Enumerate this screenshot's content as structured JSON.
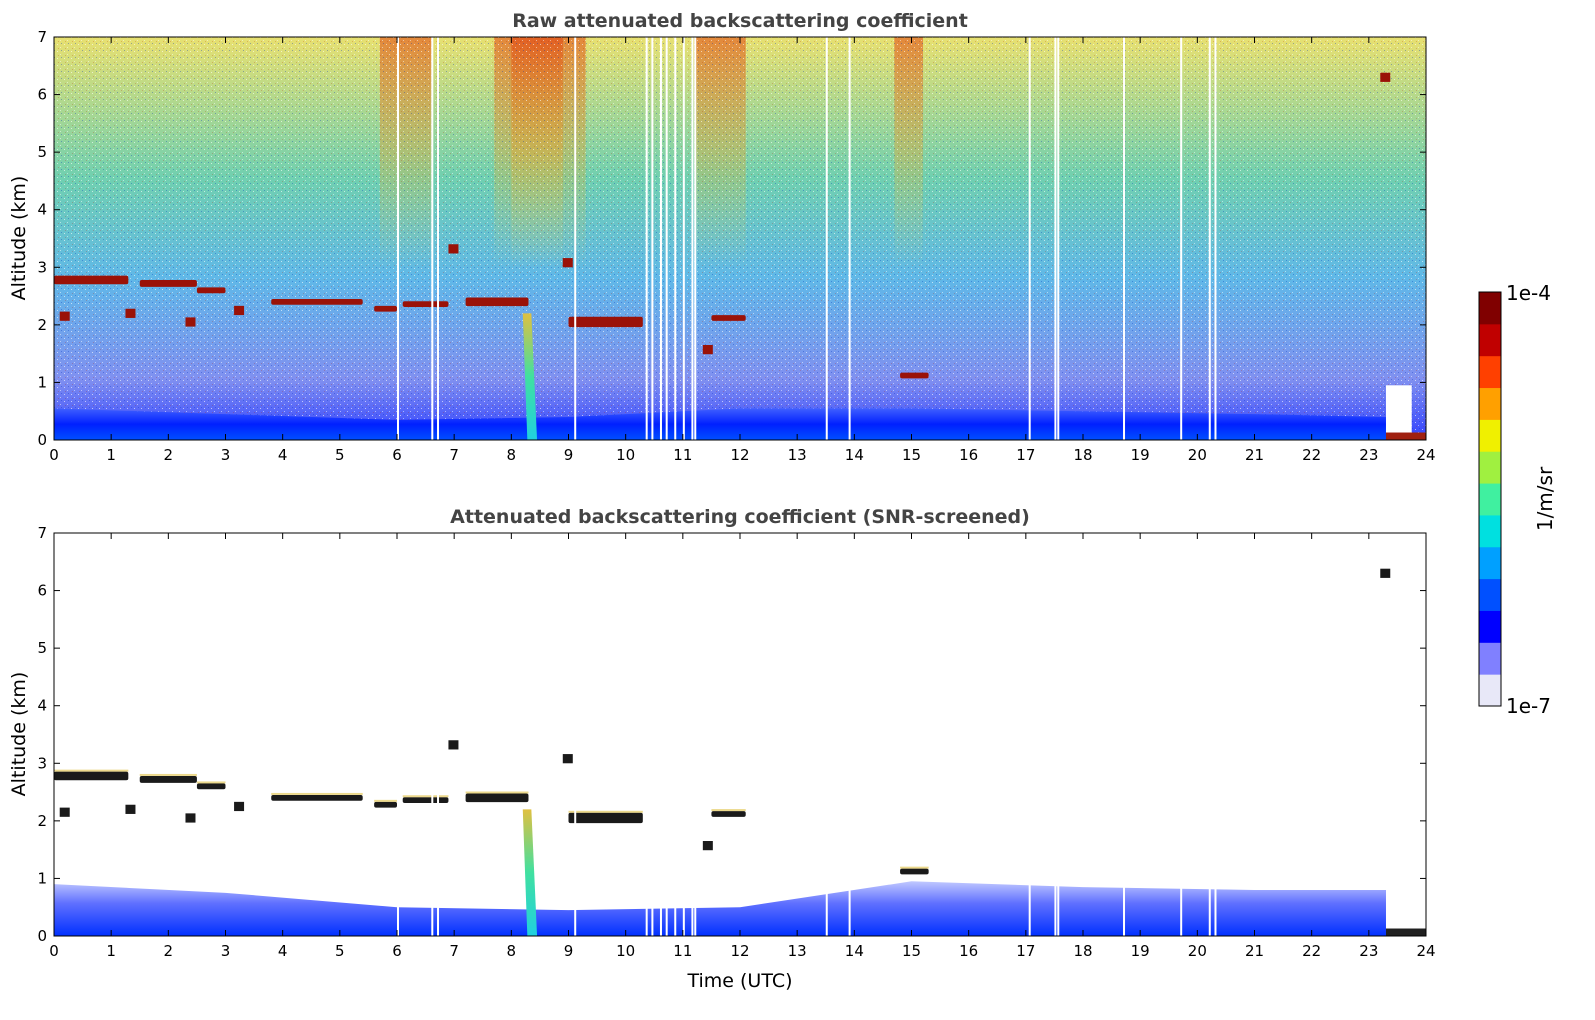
{
  "chart_data": [
    {
      "type": "heatmap",
      "id": "raw",
      "title": "Raw attenuated backscattering coefficient",
      "xlabel": "",
      "ylabel": "Altitude (km)",
      "xlim": [
        0,
        24
      ],
      "ylim": [
        0,
        7
      ],
      "xticks": [
        "0",
        "1",
        "2",
        "3",
        "4",
        "5",
        "6",
        "7",
        "8",
        "9",
        "10",
        "11",
        "12",
        "13",
        "14",
        "15",
        "16",
        "17",
        "18",
        "19",
        "20",
        "21",
        "22",
        "23",
        "24"
      ],
      "yticks": [
        "0",
        "1",
        "2",
        "3",
        "4",
        "5",
        "6",
        "7"
      ],
      "grid": false,
      "boundary_layer": [
        {
          "t": 0,
          "top": 0.55
        },
        {
          "t": 3,
          "top": 0.45
        },
        {
          "t": 6,
          "top": 0.35
        },
        {
          "t": 9,
          "top": 0.4
        },
        {
          "t": 12,
          "top": 0.55
        },
        {
          "t": 15,
          "top": 0.55
        },
        {
          "t": 18,
          "top": 0.5
        },
        {
          "t": 21,
          "top": 0.45
        },
        {
          "t": 23.3,
          "top": 0.4
        }
      ],
      "cloud_layers": [
        {
          "t0": 0.0,
          "t1": 1.3,
          "alt": 2.78,
          "thick": 0.15
        },
        {
          "t0": 1.5,
          "t1": 2.5,
          "alt": 2.72,
          "thick": 0.12
        },
        {
          "t0": 2.5,
          "t1": 3.0,
          "alt": 2.6,
          "thick": 0.1
        },
        {
          "t0": 3.8,
          "t1": 5.4,
          "alt": 2.4,
          "thick": 0.1
        },
        {
          "t0": 5.6,
          "t1": 6.0,
          "alt": 2.28,
          "thick": 0.1
        },
        {
          "t0": 6.1,
          "t1": 6.9,
          "alt": 2.36,
          "thick": 0.1
        },
        {
          "t0": 7.2,
          "t1": 8.3,
          "alt": 2.4,
          "thick": 0.15
        },
        {
          "t0": 9.0,
          "t1": 10.3,
          "alt": 2.05,
          "thick": 0.18
        },
        {
          "t0": 11.5,
          "t1": 12.1,
          "alt": 2.12,
          "thick": 0.1
        },
        {
          "t0": 14.8,
          "t1": 15.3,
          "alt": 1.12,
          "thick": 0.1
        }
      ],
      "gaps_utc": [
        6.0,
        6.6,
        6.7,
        9.1,
        10.35,
        10.45,
        10.6,
        10.7,
        10.85,
        11.0,
        11.15,
        11.2,
        13.5,
        13.9,
        17.05,
        17.5,
        17.55,
        18.7,
        19.7,
        20.2,
        20.3
      ]
    },
    {
      "type": "heatmap",
      "id": "screened",
      "title": "Attenuated backscattering coefficient (SNR-screened)",
      "xlabel": "Time (UTC)",
      "ylabel": "Altitude (km)",
      "xlim": [
        0,
        24
      ],
      "ylim": [
        0,
        7
      ],
      "xticks": [
        "0",
        "1",
        "2",
        "3",
        "4",
        "5",
        "6",
        "7",
        "8",
        "9",
        "10",
        "11",
        "12",
        "13",
        "14",
        "15",
        "16",
        "17",
        "18",
        "19",
        "20",
        "21",
        "22",
        "23",
        "24"
      ],
      "yticks": [
        "0",
        "1",
        "2",
        "3",
        "4",
        "5",
        "6",
        "7"
      ],
      "grid": false,
      "boundary_layer": [
        {
          "t": 0,
          "top": 0.9
        },
        {
          "t": 3,
          "top": 0.75
        },
        {
          "t": 6,
          "top": 0.5
        },
        {
          "t": 9,
          "top": 0.45
        },
        {
          "t": 12,
          "top": 0.5
        },
        {
          "t": 15,
          "top": 0.95
        },
        {
          "t": 18,
          "top": 0.85
        },
        {
          "t": 21,
          "top": 0.8
        },
        {
          "t": 23.3,
          "top": 0.8
        }
      ],
      "cloud_layers": [
        {
          "t0": 0.0,
          "t1": 1.3,
          "alt": 2.78,
          "thick": 0.15
        },
        {
          "t0": 1.5,
          "t1": 2.5,
          "alt": 2.72,
          "thick": 0.12
        },
        {
          "t0": 2.5,
          "t1": 3.0,
          "alt": 2.6,
          "thick": 0.1
        },
        {
          "t0": 3.8,
          "t1": 5.4,
          "alt": 2.4,
          "thick": 0.1
        },
        {
          "t0": 5.6,
          "t1": 6.0,
          "alt": 2.28,
          "thick": 0.1
        },
        {
          "t0": 6.1,
          "t1": 6.9,
          "alt": 2.36,
          "thick": 0.1
        },
        {
          "t0": 7.2,
          "t1": 8.3,
          "alt": 2.4,
          "thick": 0.15
        },
        {
          "t0": 9.0,
          "t1": 10.3,
          "alt": 2.05,
          "thick": 0.18
        },
        {
          "t0": 11.5,
          "t1": 12.1,
          "alt": 2.12,
          "thick": 0.1
        },
        {
          "t0": 14.8,
          "t1": 15.3,
          "alt": 1.12,
          "thick": 0.1
        }
      ],
      "gaps_utc": [
        6.0,
        6.6,
        6.7,
        9.1,
        10.35,
        10.45,
        10.6,
        10.7,
        10.85,
        11.0,
        11.15,
        11.2,
        13.5,
        13.9,
        17.05,
        17.5,
        17.55,
        18.7,
        19.7,
        20.2,
        20.3
      ]
    }
  ],
  "colorbar": {
    "max_label": "1e-4",
    "min_label": "1e-7",
    "units": "1/m/sr",
    "colors": [
      "#e8e8f8",
      "#8080ff",
      "#0000ff",
      "#0050ff",
      "#00a0ff",
      "#00e0e0",
      "#40f0a0",
      "#a0f040",
      "#f0f000",
      "#ffa000",
      "#ff4000",
      "#c00000",
      "#800000"
    ]
  }
}
